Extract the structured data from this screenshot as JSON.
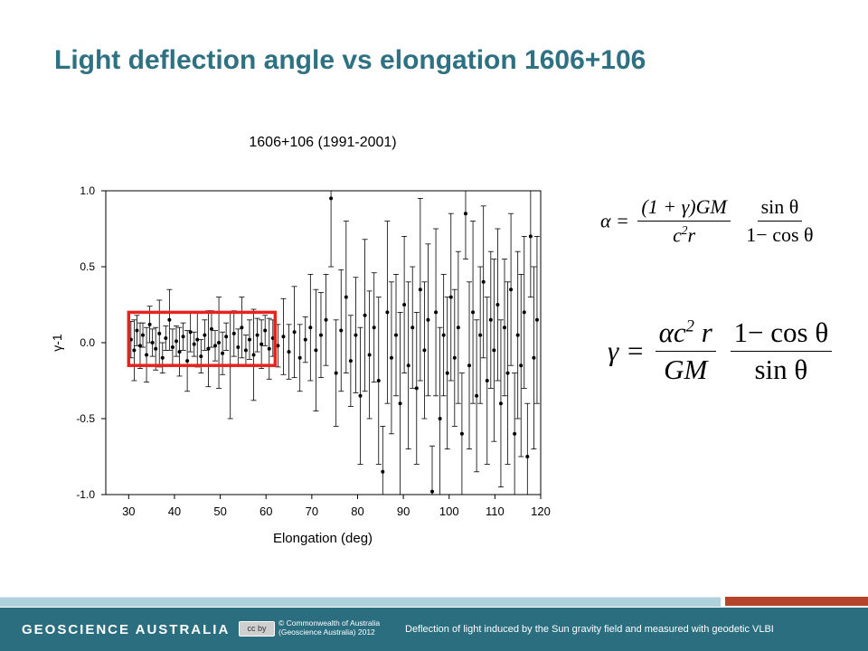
{
  "slide": {
    "title": "Light deflection angle vs elongation 1606+106"
  },
  "chart_data": {
    "type": "scatter",
    "title": "1606+106 (1991-2001)",
    "xlabel": "Elongation (deg)",
    "ylabel": "γ-1",
    "xlim": [
      25,
      120
    ],
    "ylim": [
      -1.0,
      1.0
    ],
    "xticks": [
      "30",
      "40",
      "50",
      "60",
      "70",
      "80",
      "90",
      "100",
      "110",
      "120"
    ],
    "yticks": [
      "1.0",
      "0.5",
      "0.0",
      "-0.5",
      "-1.0"
    ],
    "grid": false,
    "error_bars": true,
    "highlight_box": {
      "x": [
        30,
        62
      ],
      "y": [
        -0.15,
        0.2
      ],
      "color": "#e8221c"
    },
    "series": [
      {
        "marker_color": "#000000",
        "points": [
          {
            "x": 30.5,
            "y": 0.02,
            "err": 0.12
          },
          {
            "x": 31.2,
            "y": -0.05,
            "err": 0.2
          },
          {
            "x": 31.8,
            "y": 0.08,
            "err": 0.1
          },
          {
            "x": 32.5,
            "y": -0.02,
            "err": 0.15
          },
          {
            "x": 33.1,
            "y": 0.05,
            "err": 0.08
          },
          {
            "x": 33.9,
            "y": -0.08,
            "err": 0.18
          },
          {
            "x": 34.6,
            "y": 0.12,
            "err": 0.12
          },
          {
            "x": 35.2,
            "y": 0.0,
            "err": 0.09
          },
          {
            "x": 35.9,
            "y": -0.04,
            "err": 0.14
          },
          {
            "x": 36.7,
            "y": 0.06,
            "err": 0.22
          },
          {
            "x": 37.4,
            "y": -0.1,
            "err": 0.1
          },
          {
            "x": 38.1,
            "y": 0.03,
            "err": 0.08
          },
          {
            "x": 38.9,
            "y": 0.15,
            "err": 0.2
          },
          {
            "x": 39.6,
            "y": -0.03,
            "err": 0.12
          },
          {
            "x": 40.4,
            "y": 0.01,
            "err": 0.1
          },
          {
            "x": 41.1,
            "y": -0.06,
            "err": 0.16
          },
          {
            "x": 41.9,
            "y": 0.04,
            "err": 0.09
          },
          {
            "x": 42.8,
            "y": -0.12,
            "err": 0.2
          },
          {
            "x": 43.5,
            "y": 0.07,
            "err": 0.13
          },
          {
            "x": 44.3,
            "y": -0.01,
            "err": 0.08
          },
          {
            "x": 45.0,
            "y": 0.02,
            "err": 0.18
          },
          {
            "x": 45.8,
            "y": -0.09,
            "err": 0.11
          },
          {
            "x": 46.6,
            "y": 0.05,
            "err": 0.1
          },
          {
            "x": 47.4,
            "y": -0.04,
            "err": 0.25
          },
          {
            "x": 48.1,
            "y": 0.09,
            "err": 0.12
          },
          {
            "x": 48.9,
            "y": -0.02,
            "err": 0.1
          },
          {
            "x": 49.7,
            "y": 0.0,
            "err": 0.3
          },
          {
            "x": 50.5,
            "y": -0.07,
            "err": 0.14
          },
          {
            "x": 51.3,
            "y": 0.04,
            "err": 0.09
          },
          {
            "x": 52.2,
            "y": -0.15,
            "err": 0.35
          },
          {
            "x": 53.0,
            "y": 0.06,
            "err": 0.15
          },
          {
            "x": 53.9,
            "y": -0.03,
            "err": 0.12
          },
          {
            "x": 54.7,
            "y": 0.1,
            "err": 0.2
          },
          {
            "x": 55.6,
            "y": -0.05,
            "err": 0.1
          },
          {
            "x": 56.4,
            "y": 0.02,
            "err": 0.13
          },
          {
            "x": 57.3,
            "y": -0.08,
            "err": 0.3
          },
          {
            "x": 58.1,
            "y": 0.05,
            "err": 0.11
          },
          {
            "x": 59.0,
            "y": -0.01,
            "err": 0.16
          },
          {
            "x": 59.8,
            "y": 0.08,
            "err": 0.1
          },
          {
            "x": 60.7,
            "y": -0.04,
            "err": 0.2
          },
          {
            "x": 61.5,
            "y": 0.03,
            "err": 0.12
          },
          {
            "x": 62.6,
            "y": -0.02,
            "err": 0.14
          },
          {
            "x": 63.8,
            "y": 0.04,
            "err": 0.25
          },
          {
            "x": 65.0,
            "y": -0.06,
            "err": 0.18
          },
          {
            "x": 66.2,
            "y": 0.07,
            "err": 0.3
          },
          {
            "x": 67.4,
            "y": -0.1,
            "err": 0.22
          },
          {
            "x": 68.6,
            "y": 0.02,
            "err": 0.15
          },
          {
            "x": 69.7,
            "y": 0.1,
            "err": 0.35
          },
          {
            "x": 70.9,
            "y": -0.05,
            "err": 0.4
          },
          {
            "x": 72.0,
            "y": 0.05,
            "err": 0.28
          },
          {
            "x": 73.1,
            "y": 0.15,
            "err": 0.3
          },
          {
            "x": 74.2,
            "y": 0.95,
            "err": 0.45
          },
          {
            "x": 75.3,
            "y": -0.2,
            "err": 0.35
          },
          {
            "x": 76.4,
            "y": 0.08,
            "err": 0.4
          },
          {
            "x": 77.5,
            "y": 0.3,
            "err": 0.5
          },
          {
            "x": 78.5,
            "y": -0.12,
            "err": 0.3
          },
          {
            "x": 79.6,
            "y": 0.05,
            "err": 0.38
          },
          {
            "x": 80.6,
            "y": -0.35,
            "err": 0.45
          },
          {
            "x": 81.6,
            "y": 0.18,
            "err": 0.5
          },
          {
            "x": 82.6,
            "y": -0.08,
            "err": 0.42
          },
          {
            "x": 83.6,
            "y": 0.1,
            "err": 0.36
          },
          {
            "x": 84.6,
            "y": -0.25,
            "err": 0.55
          },
          {
            "x": 85.5,
            "y": -0.85,
            "err": 0.3
          },
          {
            "x": 86.5,
            "y": 0.2,
            "err": 0.6
          },
          {
            "x": 87.4,
            "y": -0.1,
            "err": 0.5
          },
          {
            "x": 88.4,
            "y": 0.05,
            "err": 0.4
          },
          {
            "x": 89.3,
            "y": -0.4,
            "err": 0.6
          },
          {
            "x": 90.2,
            "y": 0.25,
            "err": 0.45
          },
          {
            "x": 91.1,
            "y": -0.15,
            "err": 0.55
          },
          {
            "x": 92.0,
            "y": 0.1,
            "err": 0.4
          },
          {
            "x": 92.9,
            "y": -0.3,
            "err": 0.5
          },
          {
            "x": 93.7,
            "y": 0.35,
            "err": 0.6
          },
          {
            "x": 94.6,
            "y": -0.05,
            "err": 0.45
          },
          {
            "x": 95.4,
            "y": 0.15,
            "err": 0.5
          },
          {
            "x": 96.3,
            "y": -0.98,
            "err": 0.3
          },
          {
            "x": 97.1,
            "y": 0.2,
            "err": 0.55
          },
          {
            "x": 98.0,
            "y": -0.5,
            "err": 0.6
          },
          {
            "x": 98.8,
            "y": 0.05,
            "err": 0.4
          },
          {
            "x": 99.6,
            "y": -0.2,
            "err": 0.5
          },
          {
            "x": 100.4,
            "y": 0.3,
            "err": 0.55
          },
          {
            "x": 101.2,
            "y": -0.1,
            "err": 0.45
          },
          {
            "x": 102.0,
            "y": 0.1,
            "err": 0.5
          },
          {
            "x": 102.8,
            "y": -0.6,
            "err": 0.4
          },
          {
            "x": 103.6,
            "y": 0.85,
            "err": 0.3
          },
          {
            "x": 104.4,
            "y": -0.15,
            "err": 0.55
          },
          {
            "x": 105.2,
            "y": 0.2,
            "err": 0.6
          },
          {
            "x": 106.0,
            "y": -0.35,
            "err": 0.5
          },
          {
            "x": 106.8,
            "y": 0.05,
            "err": 0.45
          },
          {
            "x": 107.5,
            "y": 0.4,
            "err": 0.5
          },
          {
            "x": 108.3,
            "y": -0.25,
            "err": 0.55
          },
          {
            "x": 109.1,
            "y": 0.15,
            "err": 0.45
          },
          {
            "x": 109.8,
            "y": -0.05,
            "err": 0.6
          },
          {
            "x": 110.6,
            "y": 0.25,
            "err": 0.5
          },
          {
            "x": 111.3,
            "y": -0.4,
            "err": 0.55
          },
          {
            "x": 112.1,
            "y": 0.1,
            "err": 0.45
          },
          {
            "x": 112.8,
            "y": -0.2,
            "err": 0.6
          },
          {
            "x": 113.5,
            "y": 0.35,
            "err": 0.5
          },
          {
            "x": 114.3,
            "y": -0.6,
            "err": 0.4
          },
          {
            "x": 115.0,
            "y": 0.05,
            "err": 0.55
          },
          {
            "x": 115.7,
            "y": -0.15,
            "err": 0.6
          },
          {
            "x": 116.4,
            "y": 0.2,
            "err": 0.5
          },
          {
            "x": 117.1,
            "y": -0.75,
            "err": 0.35
          },
          {
            "x": 117.8,
            "y": 0.7,
            "err": 0.4
          },
          {
            "x": 118.5,
            "y": -0.1,
            "err": 0.6
          },
          {
            "x": 119.2,
            "y": 0.15,
            "err": 0.55
          }
        ]
      }
    ]
  },
  "formulas": {
    "deflection": {
      "lhs": "α =",
      "f1_num": "(1 + γ)GM",
      "f1_den_a": "c",
      "f1_den_sup": "2",
      "f1_den_b": "r",
      "f2_num": "sin θ",
      "f2_den": "1− cos θ"
    },
    "gamma": {
      "lhs": "γ =",
      "f1_num_a": "αc",
      "f1_num_sup": "2",
      "f1_num_b": " r",
      "f1_den": "GM",
      "f2_num": "1− cos θ",
      "f2_den": "sin θ"
    }
  },
  "footer": {
    "brand": "GEOSCIENCE AUSTRALIA",
    "cc_badge": "cc by",
    "copyright_line1": "© Commonwealth of Australia",
    "copyright_line2": "(Geoscience Australia) 2012",
    "note": "Deflection of light induced by the Sun gravity field and measured with geodetic VLBI",
    "accent_color": "#b5452a",
    "band_color": "#2a6e80"
  }
}
